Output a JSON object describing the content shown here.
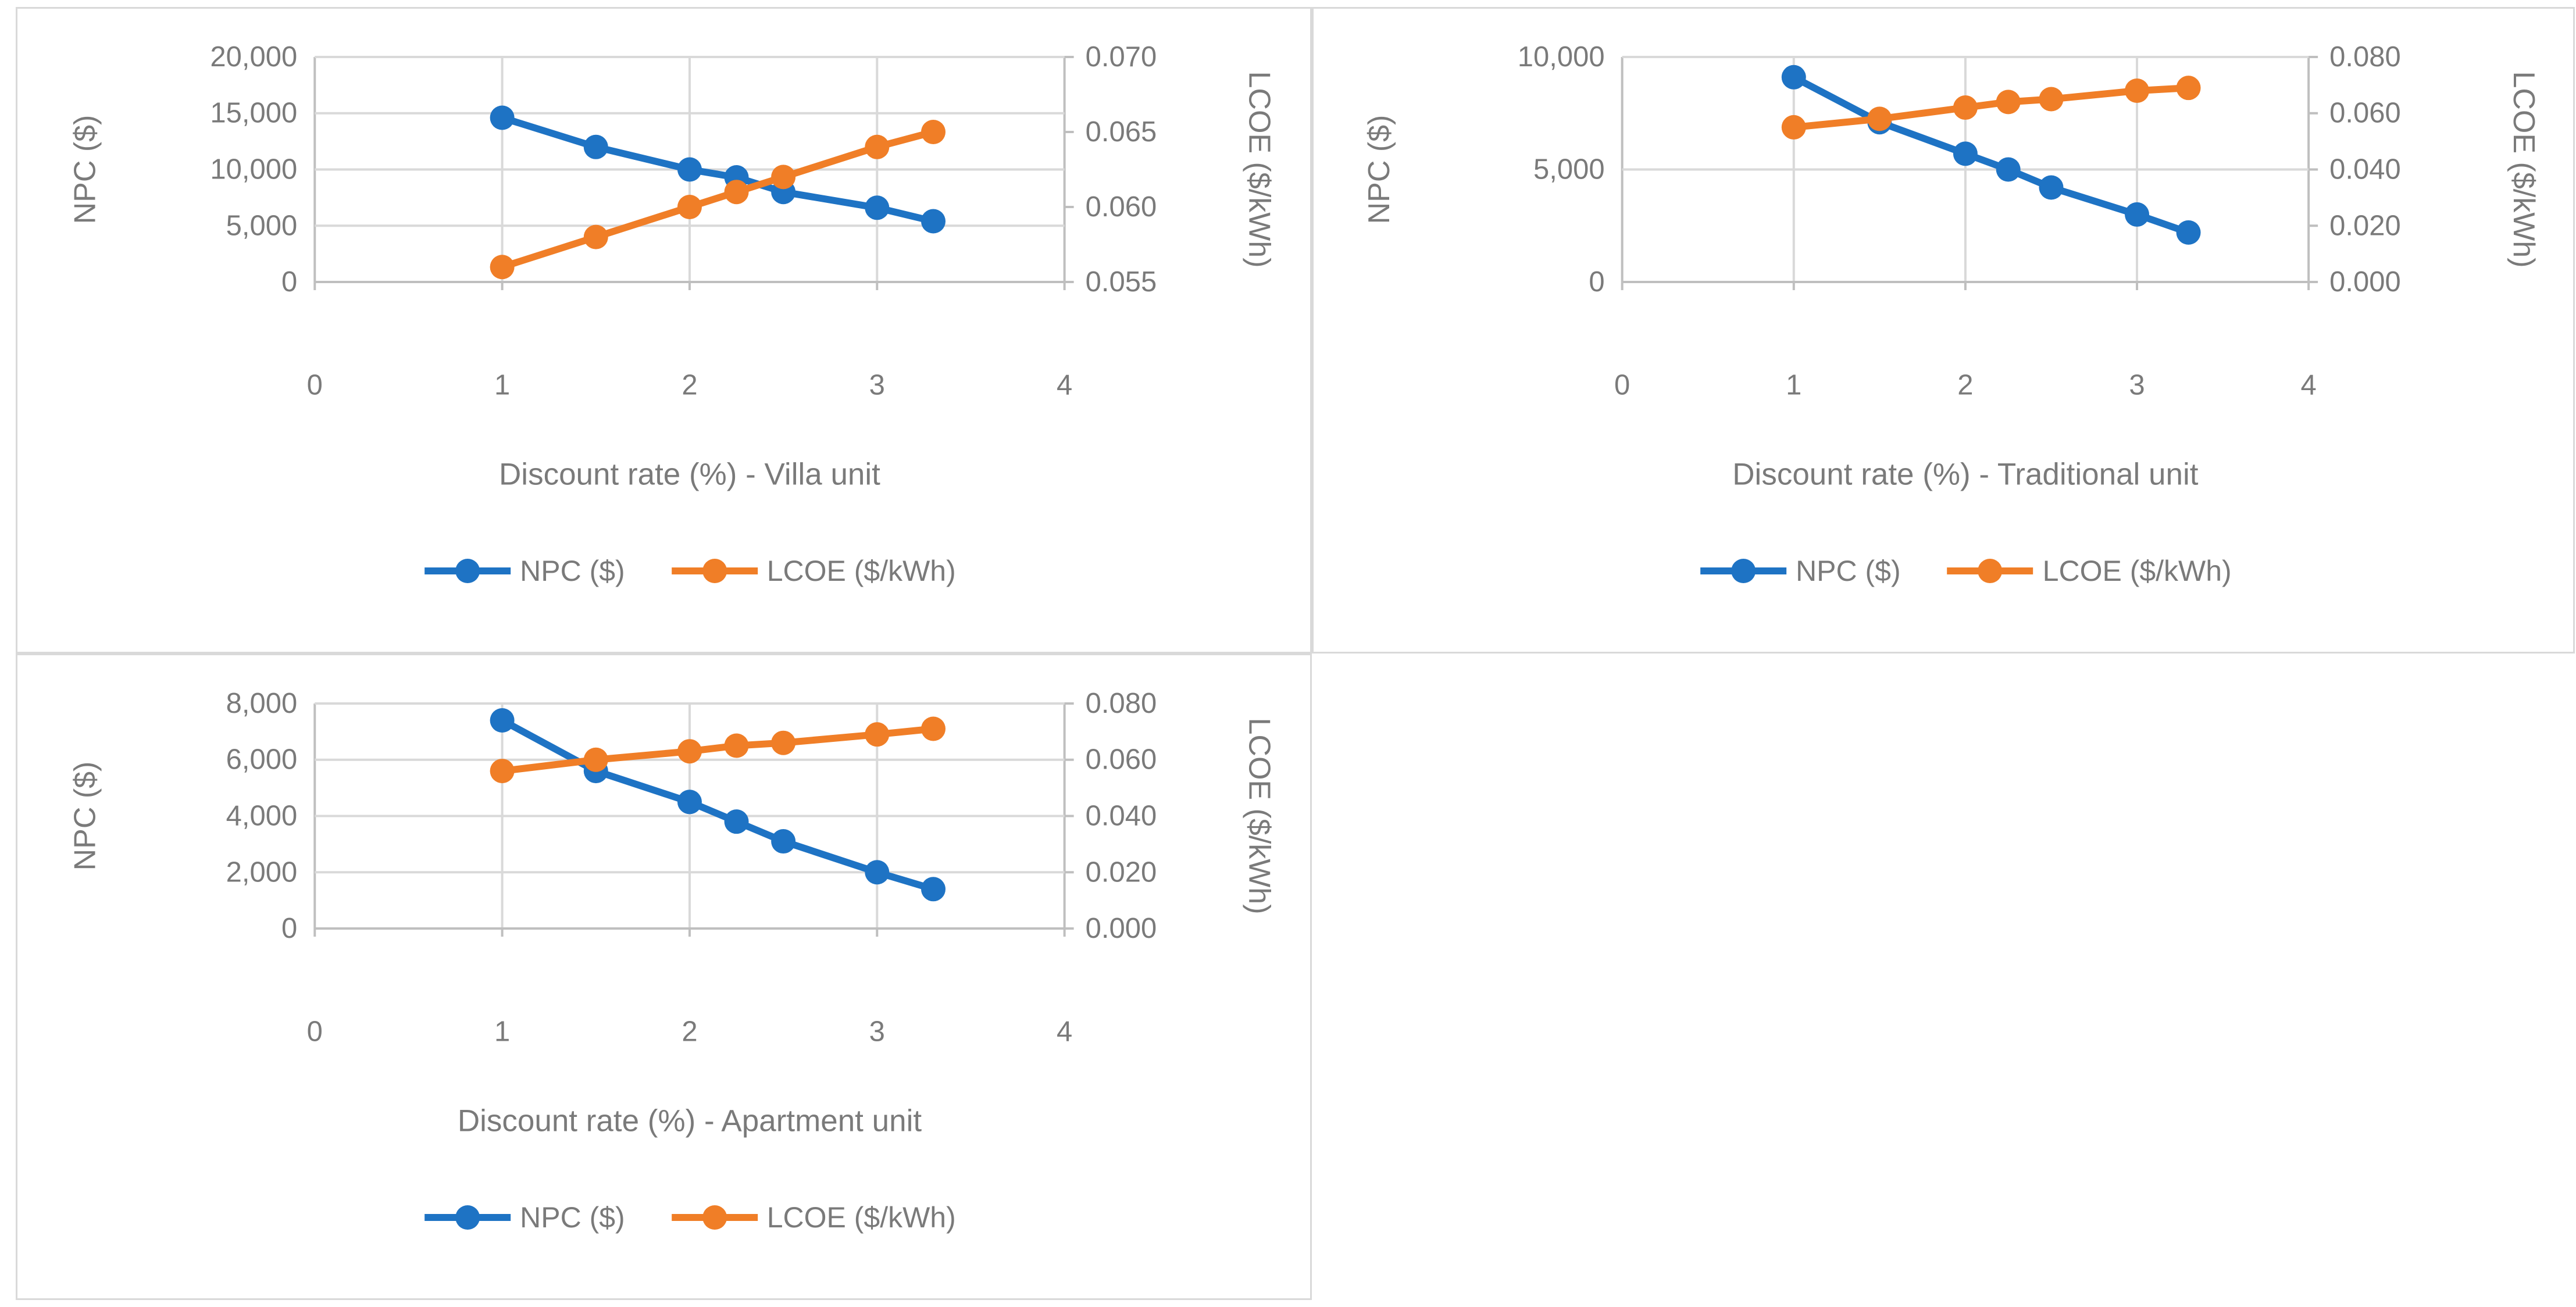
{
  "colors": {
    "npc": "#1e73c4",
    "lcoe": "#f07e27",
    "gridline": "#d9d9d9",
    "axis_line": "#bfbfbf",
    "label": "#7a7a7a",
    "panel_border": "#d9d9d9",
    "background": "#ffffff"
  },
  "legend": {
    "npc_label": "NPC ($)",
    "lcoe_label": "LCOE ($/kWh)"
  },
  "chart_data": [
    {
      "type": "line",
      "title": "",
      "xlabel": "Discount rate (%) - Villa unit",
      "x": [
        1,
        1.5,
        2,
        2.25,
        2.5,
        3,
        3.3
      ],
      "series": [
        {
          "name": "NPC ($)",
          "axis": "left",
          "color_key": "npc",
          "values": [
            14600,
            12000,
            10000,
            9300,
            8000,
            6600,
            5400
          ]
        },
        {
          "name": "LCOE ($/kWh)",
          "axis": "right",
          "color_key": "lcoe",
          "values": [
            0.056,
            0.058,
            0.06,
            0.061,
            0.062,
            0.064,
            0.065
          ]
        }
      ],
      "axes": {
        "x": {
          "range": [
            0,
            4
          ],
          "ticks": [
            0,
            1,
            2,
            3,
            4
          ],
          "tick_labels": [
            "0",
            "1",
            "2",
            "3",
            "4"
          ]
        },
        "left": {
          "label": "NPC ($)",
          "range": [
            0,
            20000
          ],
          "ticks": [
            0,
            5000,
            10000,
            15000,
            20000
          ],
          "tick_labels": [
            "0",
            "5,000",
            "10,000",
            "15,000",
            "20,000"
          ]
        },
        "right": {
          "label": "LCOE ($/kWh)",
          "range": [
            0.055,
            0.07
          ],
          "ticks": [
            0.055,
            0.06,
            0.065,
            0.07
          ],
          "tick_labels": [
            "0.055",
            "0.060",
            "0.065",
            "0.070"
          ]
        }
      },
      "grid": true,
      "legend_position": "bottom"
    },
    {
      "type": "line",
      "title": "",
      "xlabel": "Discount rate (%) - Traditional unit",
      "x": [
        1,
        1.5,
        2,
        2.25,
        2.5,
        3,
        3.3
      ],
      "series": [
        {
          "name": "NPC ($)",
          "axis": "left",
          "color_key": "npc",
          "values": [
            9100,
            7100,
            5700,
            5000,
            4200,
            3000,
            2200
          ]
        },
        {
          "name": "LCOE ($/kWh)",
          "axis": "right",
          "color_key": "lcoe",
          "values": [
            0.055,
            0.058,
            0.062,
            0.064,
            0.065,
            0.068,
            0.069
          ]
        }
      ],
      "axes": {
        "x": {
          "range": [
            0,
            4
          ],
          "ticks": [
            0,
            1,
            2,
            3,
            4
          ],
          "tick_labels": [
            "0",
            "1",
            "2",
            "3",
            "4"
          ]
        },
        "left": {
          "label": "NPC ($)",
          "range": [
            0,
            10000
          ],
          "ticks": [
            0,
            5000,
            10000
          ],
          "tick_labels": [
            "0",
            "5,000",
            "10,000"
          ]
        },
        "right": {
          "label": "LCOE ($/kWh)",
          "range": [
            0,
            0.08
          ],
          "ticks": [
            0,
            0.02,
            0.04,
            0.06,
            0.08
          ],
          "tick_labels": [
            "0.000",
            "0.020",
            "0.040",
            "0.060",
            "0.080"
          ]
        }
      },
      "grid": true,
      "legend_position": "bottom"
    },
    {
      "type": "line",
      "title": "",
      "xlabel": "Discount rate (%) - Apartment unit",
      "x": [
        1,
        1.5,
        2,
        2.25,
        2.5,
        3,
        3.3
      ],
      "series": [
        {
          "name": "NPC ($)",
          "axis": "left",
          "color_key": "npc",
          "values": [
            7400,
            5600,
            4500,
            3800,
            3100,
            2000,
            1400
          ]
        },
        {
          "name": "LCOE ($/kWh)",
          "axis": "right",
          "color_key": "lcoe",
          "values": [
            0.056,
            0.06,
            0.063,
            0.065,
            0.066,
            0.069,
            0.071
          ]
        }
      ],
      "axes": {
        "x": {
          "range": [
            0,
            4
          ],
          "ticks": [
            0,
            1,
            2,
            3,
            4
          ],
          "tick_labels": [
            "0",
            "1",
            "2",
            "3",
            "4"
          ]
        },
        "left": {
          "label": "NPC ($)",
          "range": [
            0,
            8000
          ],
          "ticks": [
            0,
            2000,
            4000,
            6000,
            8000
          ],
          "tick_labels": [
            "0",
            "2,000",
            "4,000",
            "6,000",
            "8,000"
          ]
        },
        "right": {
          "label": "LCOE ($/kWh)",
          "range": [
            0,
            0.08
          ],
          "ticks": [
            0,
            0.02,
            0.04,
            0.06,
            0.08
          ],
          "tick_labels": [
            "0.000",
            "0.020",
            "0.040",
            "0.060",
            "0.080"
          ]
        }
      },
      "grid": true,
      "legend_position": "bottom"
    }
  ]
}
